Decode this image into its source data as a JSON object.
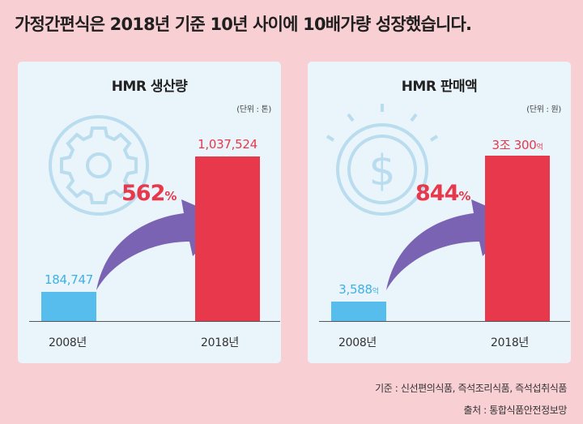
{
  "headline": "가정간편식은 2018년 기준 10년 사이에 10배가량 성장했습니다.",
  "chart_data": [
    {
      "type": "bar",
      "title": "HMR 생산량",
      "unit": "(단위 : 톤)",
      "categories": [
        "2008년",
        "2018년"
      ],
      "values": [
        184747,
        1037524
      ],
      "value_labels": [
        "184,747",
        "1,037,524"
      ],
      "growth_label": "562",
      "growth_unit": "%",
      "ylim": [
        0,
        1100000
      ],
      "colors": [
        "#56bdec",
        "#e8384b"
      ]
    },
    {
      "type": "bar",
      "title": "HMR 판매액",
      "unit": "(단위 : 원)",
      "categories": [
        "2008년",
        "2018년"
      ],
      "values": [
        3588,
        30300
      ],
      "value_labels": [
        "3,588",
        "3조 300"
      ],
      "value_suffix": "억",
      "growth_label": "844",
      "growth_unit": "%",
      "ylim": [
        0,
        32000
      ],
      "colors": [
        "#56bdec",
        "#e8384b"
      ]
    }
  ],
  "footnotes": {
    "basis": "기준 : 신선편의식품, 즉석조리식품, 즉석섭취식품",
    "source": "출처 : 통합식품안전정보망"
  }
}
